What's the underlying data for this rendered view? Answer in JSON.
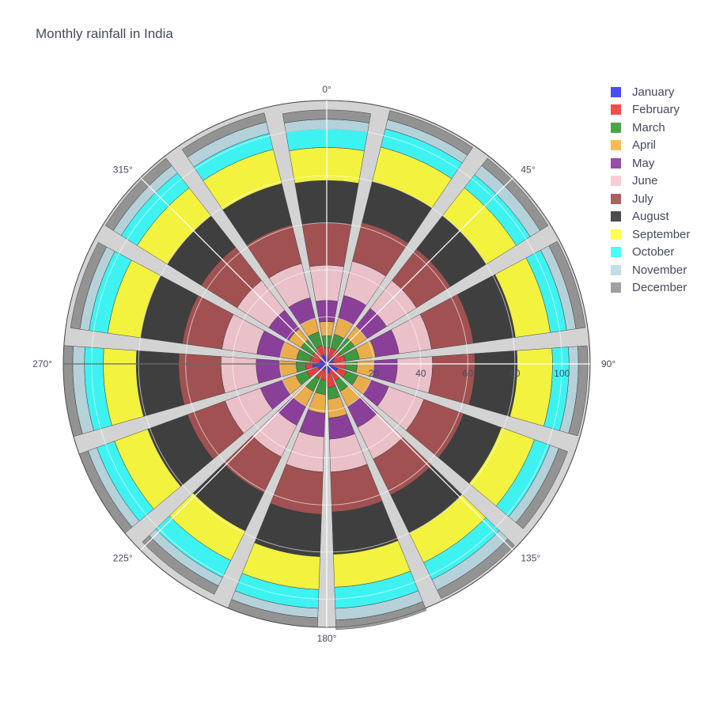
{
  "chart_data": {
    "type": "barpolar",
    "title": "Monthly rainfall in India",
    "angular_axis": {
      "direction": "clockwise",
      "rotation": 90,
      "tick_labels": [
        "0°",
        "45°",
        "90°",
        "135°",
        "180°",
        "225°",
        "270°",
        "315°"
      ],
      "tick_values": [
        0,
        45,
        90,
        135,
        180,
        225,
        270,
        315
      ]
    },
    "radial_axis": {
      "range": [
        0,
        112
      ],
      "tick_labels": [
        "20",
        "40",
        "60",
        "80",
        "100"
      ],
      "tick_values": [
        20,
        40,
        60,
        80,
        100
      ]
    },
    "bar_angles": [
      0,
      24,
      48,
      72,
      96,
      120,
      144,
      168,
      192,
      216,
      240,
      264,
      288,
      312,
      336
    ],
    "bar_width_deg": 20,
    "series": [
      {
        "name": "January",
        "color": "#0000ee",
        "values": [
          3,
          2,
          4,
          3,
          2,
          5,
          3,
          4,
          2,
          3,
          4,
          6,
          3,
          2,
          4
        ]
      },
      {
        "name": "February",
        "color": "#ee0000",
        "values": [
          4,
          5,
          3,
          5,
          6,
          4,
          5,
          6,
          5,
          4,
          5,
          3,
          4,
          5,
          4
        ]
      },
      {
        "name": "March",
        "color": "#007f00",
        "values": [
          5,
          6,
          7,
          6,
          5,
          5,
          5,
          5,
          6,
          6,
          5,
          4,
          6,
          6,
          6
        ]
      },
      {
        "name": "April",
        "color": "#f39c12",
        "values": [
          6,
          7,
          6,
          7,
          7,
          6,
          7,
          8,
          8,
          7,
          6,
          7,
          7,
          6,
          6
        ]
      },
      {
        "name": "May",
        "color": "#6b0080",
        "values": [
          9,
          10,
          10,
          10,
          10,
          8,
          10,
          9,
          10,
          9,
          10,
          10,
          10,
          10,
          9
        ]
      },
      {
        "name": "June",
        "color": "#f4b8c4",
        "values": [
          15,
          15,
          15,
          14,
          15,
          16,
          15,
          14,
          15,
          15,
          16,
          15,
          15,
          16,
          15
        ]
      },
      {
        "name": "July",
        "color": "#8b1a1a",
        "values": [
          18,
          17,
          17,
          18,
          18,
          18,
          17,
          17,
          18,
          17,
          17,
          18,
          17,
          18,
          17
        ]
      },
      {
        "name": "August",
        "color": "#000000",
        "values": [
          18,
          18,
          18,
          18,
          18,
          17,
          18,
          18,
          18,
          18,
          18,
          18,
          18,
          17,
          18
        ]
      },
      {
        "name": "September",
        "color": "#ffff00",
        "values": [
          14,
          15,
          15,
          15,
          15,
          15,
          14,
          14,
          14,
          14,
          15,
          14,
          14,
          15,
          15
        ]
      },
      {
        "name": "October",
        "color": "#00ffff",
        "values": [
          8,
          8,
          7,
          7,
          7,
          7,
          8,
          9,
          8,
          8,
          8,
          8,
          8,
          8,
          7
        ]
      },
      {
        "name": "November",
        "color": "#a8d0dc",
        "values": [
          4,
          4,
          5,
          4,
          4,
          4,
          5,
          5,
          4,
          4,
          4,
          5,
          4,
          4,
          5
        ]
      },
      {
        "name": "December",
        "color": "#777777",
        "values": [
          4,
          4,
          4,
          4,
          4,
          4,
          4,
          4,
          4,
          4,
          4,
          4,
          4,
          4,
          4
        ]
      }
    ],
    "bar_opacity": 0.7,
    "background_color": "#d3d3d3",
    "legend_position": "top-right",
    "grid": true
  }
}
